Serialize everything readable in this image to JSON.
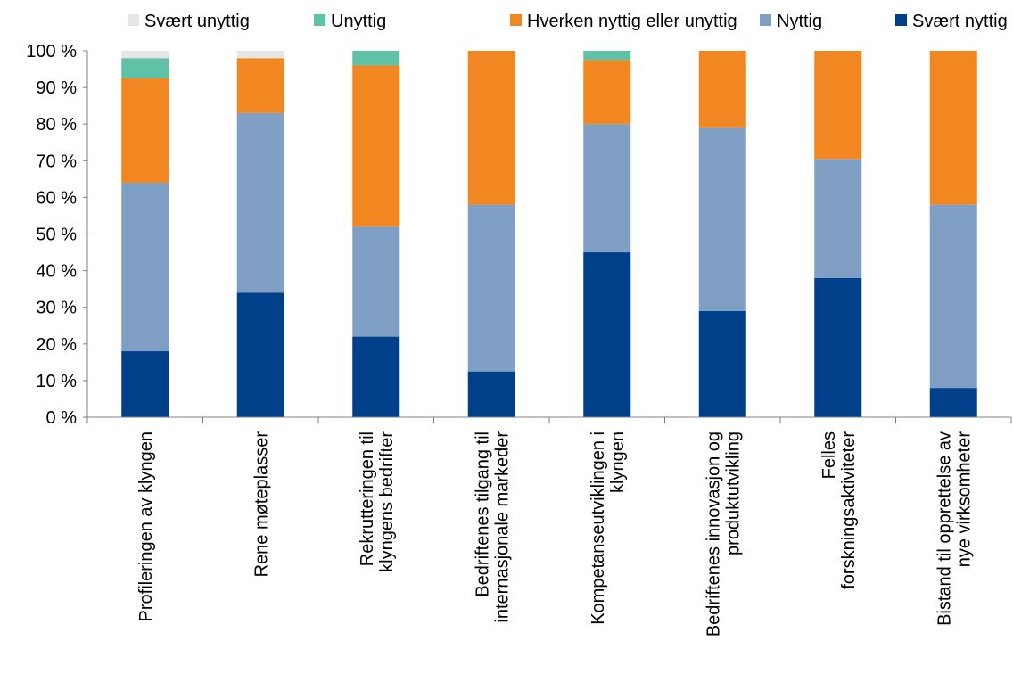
{
  "chart_data": {
    "type": "bar",
    "stacked": true,
    "categories": [
      [
        "Profileringen av klyngen"
      ],
      [
        "Rene møteplasser"
      ],
      [
        "Rekrutteringen til",
        "klyngens bedrifter"
      ],
      [
        "Bedriftenes tilgang til",
        "internasjonale markeder"
      ],
      [
        "Kompetanseutviklingen i",
        "klyngen"
      ],
      [
        "Bedriftenes innovasjon og",
        "produktutvikling"
      ],
      [
        "Felles",
        "forskningsaktiviteter"
      ],
      [
        "Bistand til opprettelse av",
        "nye virksomheter"
      ]
    ],
    "series": [
      {
        "name": "Svært nyttig",
        "color": "#003F8A",
        "values": [
          18,
          34,
          22,
          12.5,
          45,
          29,
          38,
          8
        ]
      },
      {
        "name": "Nyttig",
        "color": "#7FA0C4",
        "values": [
          46,
          49,
          30,
          45.5,
          35,
          50,
          32.5,
          50
        ]
      },
      {
        "name": "Hverken nyttig eller unyttig",
        "color": "#F28621",
        "values": [
          28.5,
          15,
          44,
          42,
          17.5,
          21,
          29.5,
          42
        ]
      },
      {
        "name": "Unyttig",
        "color": "#5FC1A6",
        "values": [
          5.5,
          0,
          4,
          0,
          2.5,
          0,
          0,
          0
        ]
      },
      {
        "name": "Svært unyttig",
        "color": "#E6E6E6",
        "values": [
          2,
          2,
          0,
          0,
          0,
          0,
          0,
          0
        ]
      }
    ],
    "legend_order": [
      4,
      3,
      2,
      1,
      0
    ],
    "ylim": [
      0,
      100
    ],
    "yticks": [
      0,
      10,
      20,
      30,
      40,
      50,
      60,
      70,
      80,
      90,
      100
    ],
    "ytick_suffix": " %",
    "legend_position": "top",
    "grid": false
  }
}
